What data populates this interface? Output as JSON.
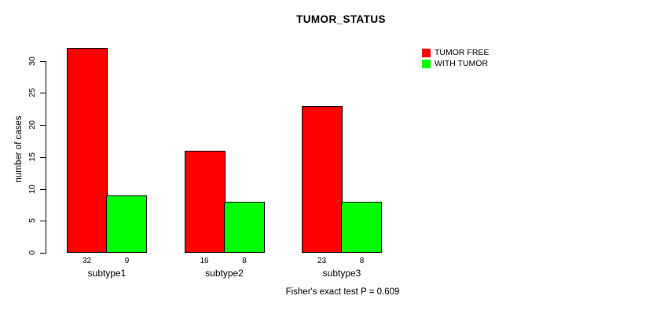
{
  "title": "TUMOR_STATUS",
  "chart_data": {
    "type": "bar",
    "title": "TUMOR_STATUS",
    "categories": [
      "subtype1",
      "subtype2",
      "subtype3"
    ],
    "series": [
      {
        "name": "TUMOR FREE",
        "color": "#ff0000",
        "values": [
          32,
          16,
          23
        ]
      },
      {
        "name": "WITH TUMOR",
        "color": "#00ff00",
        "values": [
          9,
          8,
          8
        ]
      }
    ],
    "bar_value_labels": [
      [
        32,
        9
      ],
      [
        16,
        8
      ],
      [
        23,
        8
      ]
    ],
    "xlabel": "",
    "ylabel": "number of cases",
    "ylim": [
      0,
      30
    ],
    "yticks": [
      0,
      5,
      10,
      15,
      20,
      25,
      30
    ],
    "grid": false,
    "legend_position": "top-right",
    "annotation": "Fisher's exact test P = 0.609",
    "colors": {
      "background": "#ffffff",
      "axis": "#000000",
      "bar_border": "#000000",
      "tumor_free": "#ff0000",
      "with_tumor": "#00ff00"
    }
  }
}
